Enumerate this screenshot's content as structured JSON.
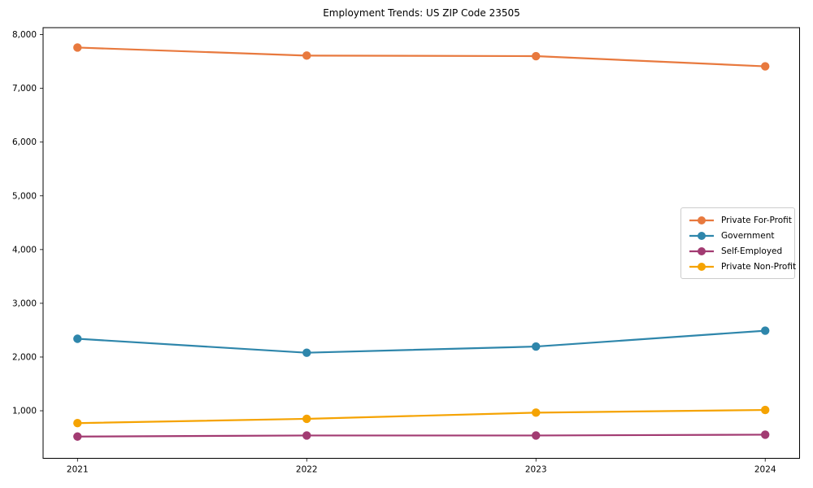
{
  "chart_data": {
    "type": "line",
    "title": "Employment Trends: US ZIP Code 23505",
    "xlabel": "",
    "ylabel": "",
    "x": [
      2021,
      2022,
      2023,
      2024
    ],
    "x_tick_labels": [
      "2021",
      "2022",
      "2023",
      "2024"
    ],
    "y_ticks": [
      1000,
      2000,
      3000,
      4000,
      5000,
      6000,
      7000,
      8000
    ],
    "y_tick_labels": [
      "1,000",
      "2,000",
      "3,000",
      "4,000",
      "5,000",
      "6,000",
      "7,000",
      "8,000"
    ],
    "xlim": [
      2020.85,
      2024.15
    ],
    "ylim": [
      115,
      8130
    ],
    "grid": false,
    "legend_position": "center-right",
    "series": [
      {
        "name": "Private For-Profit",
        "color": "#E8793E",
        "values": [
          7760,
          7610,
          7600,
          7410
        ]
      },
      {
        "name": "Government",
        "color": "#2E86AB",
        "values": [
          2340,
          2080,
          2195,
          2490
        ]
      },
      {
        "name": "Self-Employed",
        "color": "#A23B72",
        "values": [
          520,
          540,
          540,
          555
        ]
      },
      {
        "name": "Private Non-Profit",
        "color": "#F5A302",
        "values": [
          770,
          850,
          965,
          1015
        ]
      }
    ]
  }
}
